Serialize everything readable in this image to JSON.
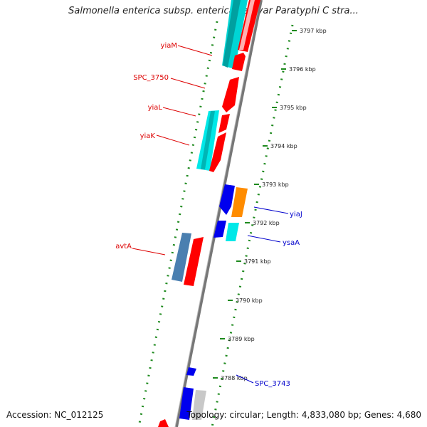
{
  "title": "Salmonella enterica subsp. enterica serovar Paratyphi C stra...",
  "accession": "Accession: NC_012125",
  "stats": "Topology: circular; Length: 4,833,080 bp; Genes: 4,680",
  "colors": {
    "backbone": "#808080",
    "tick_dots": "#1e8a1e",
    "forward_label": "#dd0000",
    "reverse_label": "#0000cc"
  },
  "ticks": [
    "3797 kbp",
    "3796 kbp",
    "3795 kbp",
    "3794 kbp",
    "3793 kbp",
    "3792 kbp",
    "3791 kbp",
    "3790 kbp",
    "3789 kbp",
    "3788 kbp"
  ],
  "left_labels": [
    "yiaM",
    "SPC_3750",
    "yiaL",
    "yiaK",
    "avtA"
  ],
  "right_labels": [
    "yiaJ",
    "ysaA",
    "SPC_3743"
  ]
}
